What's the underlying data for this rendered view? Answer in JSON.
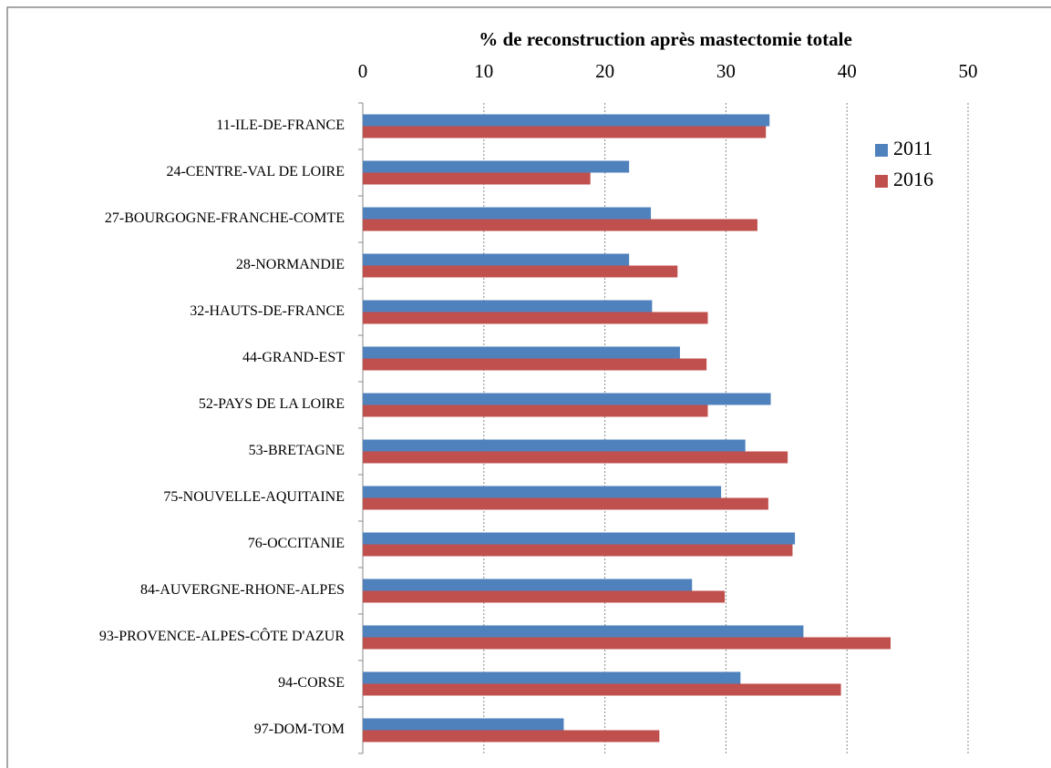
{
  "chart_data": {
    "type": "barh",
    "title": "% de reconstruction après mastectomie totale",
    "categories": [
      "11-ILE-DE-FRANCE",
      "24-CENTRE-VAL DE LOIRE",
      "27-BOURGOGNE-FRANCHE-COMTE",
      "28-NORMANDIE",
      "32-HAUTS-DE-FRANCE",
      "44-GRAND-EST",
      "52-PAYS DE LA LOIRE",
      "53-BRETAGNE",
      "75-NOUVELLE-AQUITAINE",
      "76-OCCITANIE",
      "84-AUVERGNE-RHONE-ALPES",
      "93-PROVENCE-ALPES-CÔTE D'AZUR",
      "94-CORSE",
      "97-DOM-TOM"
    ],
    "series": [
      {
        "name": "2011",
        "color": "#4f81bd",
        "values": [
          33.6,
          22.0,
          23.8,
          22.0,
          23.9,
          26.2,
          33.7,
          31.6,
          29.6,
          35.7,
          27.2,
          36.4,
          31.2,
          16.6
        ]
      },
      {
        "name": "2016",
        "color": "#c0504d",
        "values": [
          33.3,
          18.8,
          32.6,
          26.0,
          28.5,
          28.4,
          28.5,
          35.1,
          33.5,
          35.5,
          29.9,
          43.6,
          39.5,
          24.5
        ]
      }
    ],
    "xlim": [
      0,
      50
    ],
    "xticks": [
      0,
      10,
      20,
      30,
      40,
      50
    ],
    "grid": true,
    "legend": "upper right"
  }
}
